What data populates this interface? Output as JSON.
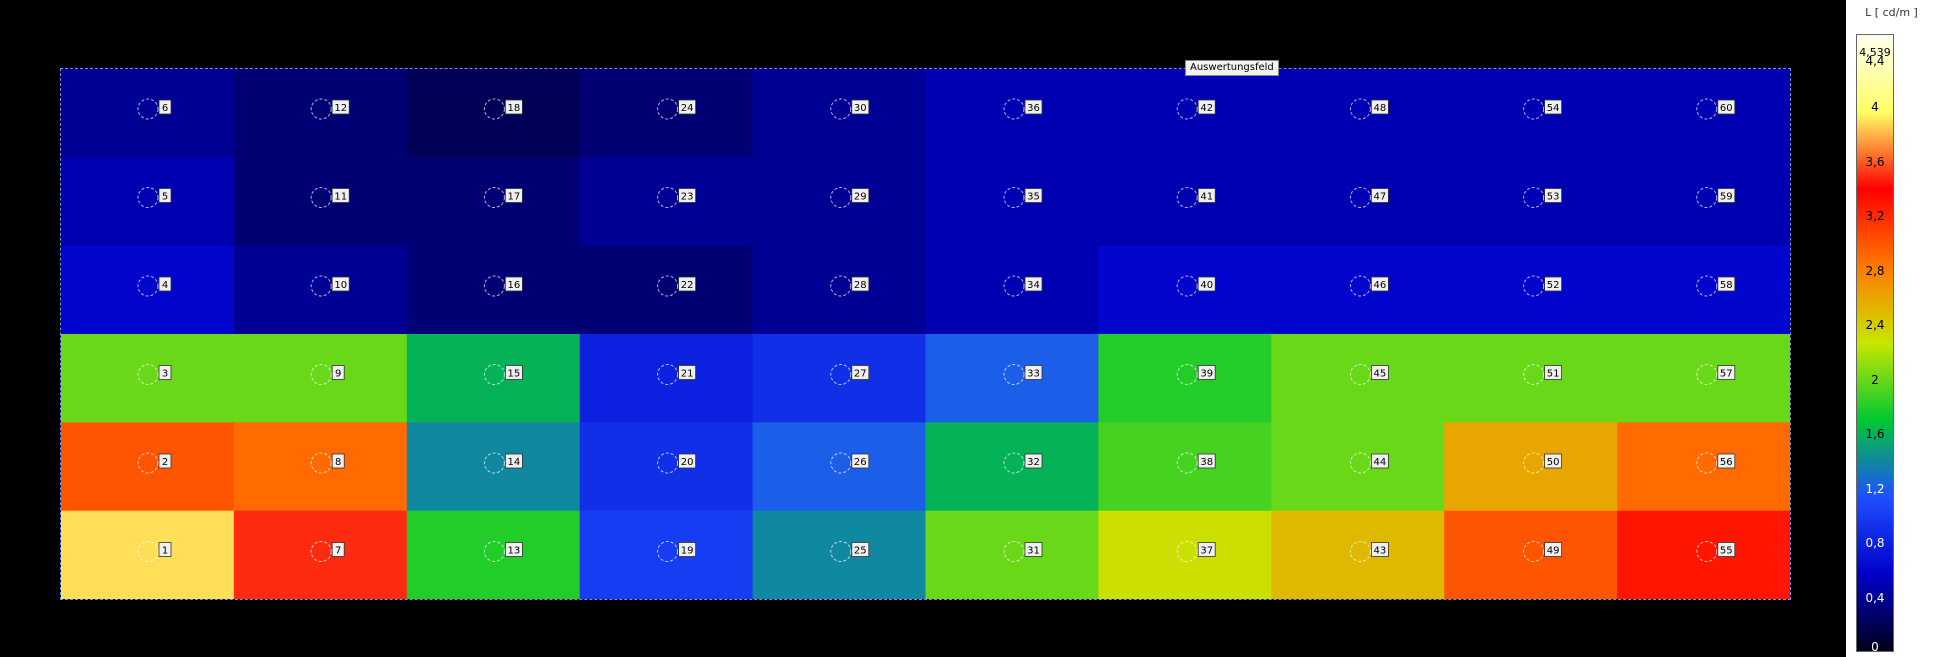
{
  "chart_data": {
    "type": "heatmap",
    "title": "Auswertungsfeld",
    "unit_label": "L [ cd/m ]",
    "colorbar": {
      "max_label": "4,539",
      "ticks": [
        "4,4",
        "4",
        "3,6",
        "3,2",
        "2,8",
        "2,4",
        "2",
        "1,6",
        "1,2",
        "0,8",
        "0,4",
        "0"
      ],
      "tick_values": [
        4.4,
        4.0,
        3.6,
        3.2,
        2.8,
        2.4,
        2.0,
        1.6,
        1.2,
        0.8,
        0.4,
        0
      ],
      "range": [
        0,
        4.539
      ],
      "colors": [
        "#000018",
        "#0000c8",
        "#1e50ff",
        "#00c832",
        "#c8e600",
        "#ff7800",
        "#ff0000",
        "#ffff64",
        "#fffff0"
      ]
    },
    "grid_rows": 6,
    "grid_cols": 10,
    "point_labels": [
      [
        "6",
        "12",
        "18",
        "24",
        "30",
        "36",
        "42",
        "48",
        "54",
        "60"
      ],
      [
        "5",
        "11",
        "17",
        "23",
        "29",
        "35",
        "41",
        "47",
        "53",
        "59"
      ],
      [
        "4",
        "10",
        "16",
        "22",
        "28",
        "34",
        "40",
        "46",
        "52",
        "58"
      ],
      [
        "3",
        "9",
        "15",
        "21",
        "27",
        "33",
        "39",
        "45",
        "51",
        "57"
      ],
      [
        "2",
        "8",
        "14",
        "20",
        "26",
        "32",
        "38",
        "44",
        "50",
        "56"
      ],
      [
        "1",
        "7",
        "13",
        "19",
        "25",
        "31",
        "37",
        "43",
        "49",
        "55"
      ]
    ],
    "values": [
      [
        0.4,
        0.3,
        0.2,
        0.3,
        0.4,
        0.5,
        0.5,
        0.5,
        0.5,
        0.5
      ],
      [
        0.5,
        0.3,
        0.3,
        0.4,
        0.4,
        0.5,
        0.5,
        0.5,
        0.5,
        0.5
      ],
      [
        0.6,
        0.4,
        0.3,
        0.3,
        0.4,
        0.5,
        0.6,
        0.6,
        0.6,
        0.6
      ],
      [
        2.0,
        2.0,
        1.6,
        0.8,
        0.9,
        1.2,
        1.8,
        2.0,
        2.0,
        2.0
      ],
      [
        3.0,
        2.9,
        1.4,
        0.9,
        1.2,
        1.6,
        1.9,
        2.0,
        2.6,
        2.9
      ],
      [
        3.9,
        3.5,
        1.8,
        1.0,
        1.4,
        2.0,
        2.3,
        2.5,
        3.0,
        3.3
      ]
    ]
  }
}
